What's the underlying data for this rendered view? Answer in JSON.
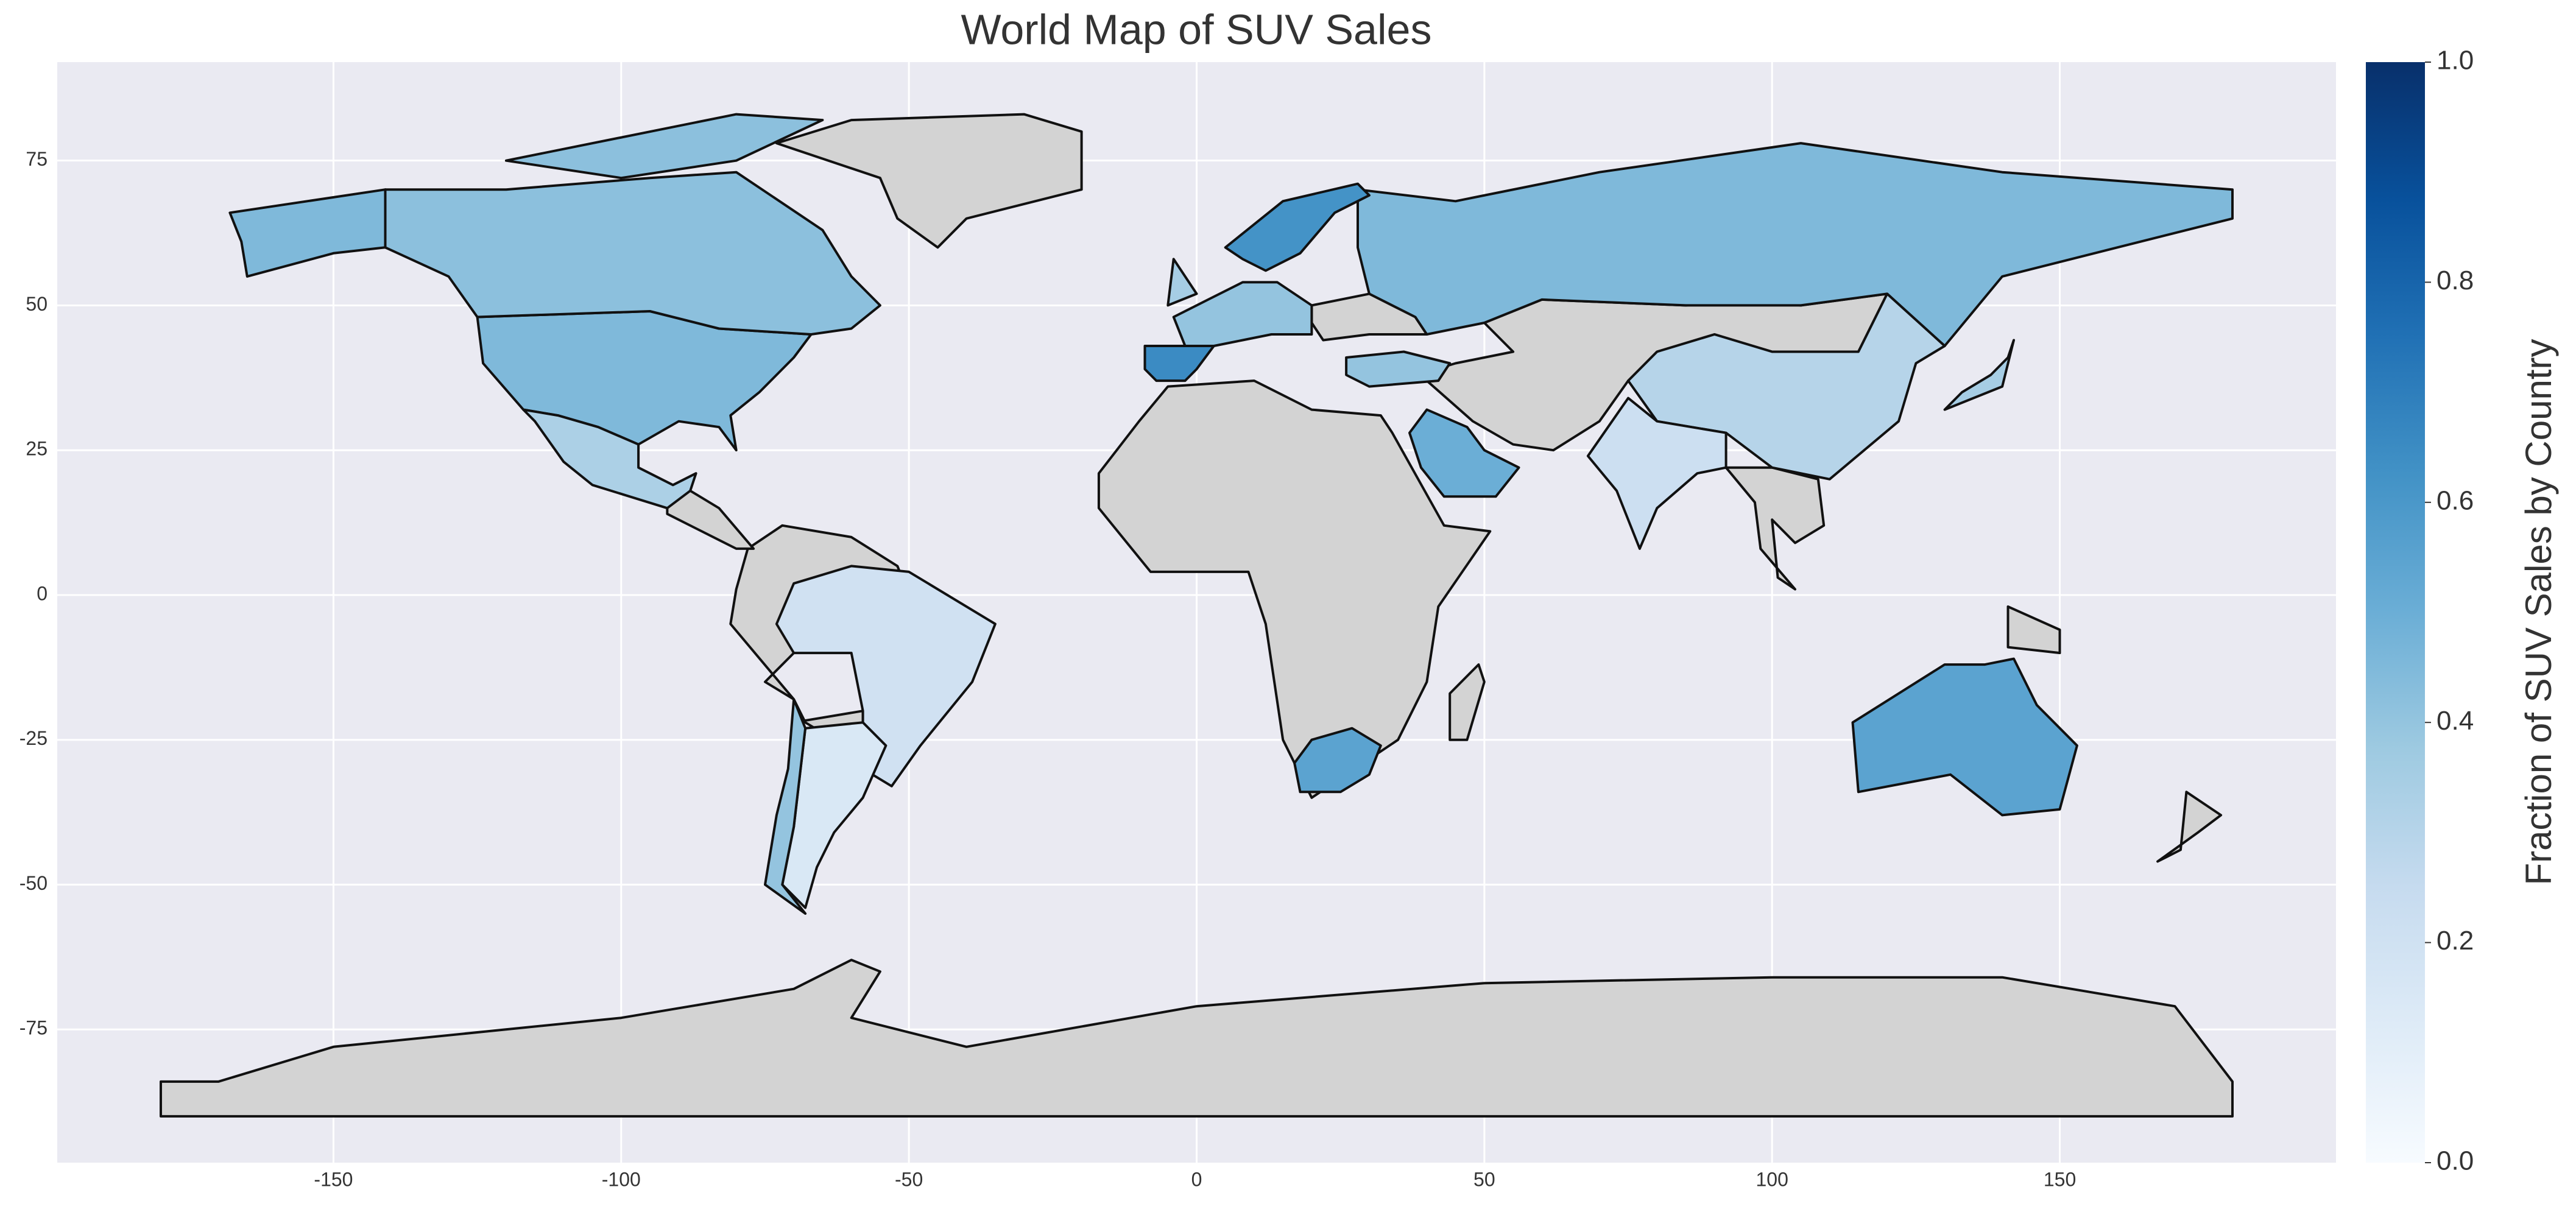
{
  "chart_data": {
    "type": "choropleth",
    "title": "World Map of SUV Sales",
    "colorbar_label": "Fraction of SUV Sales by Country",
    "colormap": "Blues",
    "missing_color": "#d3d3d3",
    "clim": [
      0,
      1
    ],
    "cticks": [
      {
        "value": 0,
        "label": "0.0"
      },
      {
        "value": 0.2,
        "label": "0.2"
      },
      {
        "value": 0.4,
        "label": "0.4"
      },
      {
        "value": 0.6,
        "label": "0.6"
      },
      {
        "value": 0.8,
        "label": "0.8"
      },
      {
        "value": 1,
        "label": "1.0"
      }
    ],
    "xlim": [
      -198,
      198
    ],
    "ylim": [
      -98,
      92
    ],
    "xticks": [
      -150,
      -100,
      -50,
      0,
      50,
      100,
      150
    ],
    "yticks": [
      -75,
      -50,
      -25,
      0,
      25,
      50,
      75
    ],
    "grid": true,
    "values": [
      0.45,
      0.42,
      0.33,
      0.2,
      0.15,
      0.4,
      0.45,
      0.3,
      0.22,
      0.55,
      0.55,
      0.5,
      0.65,
      0.62,
      0.35,
      0.4,
      0.35,
      0.4
    ]
  }
}
